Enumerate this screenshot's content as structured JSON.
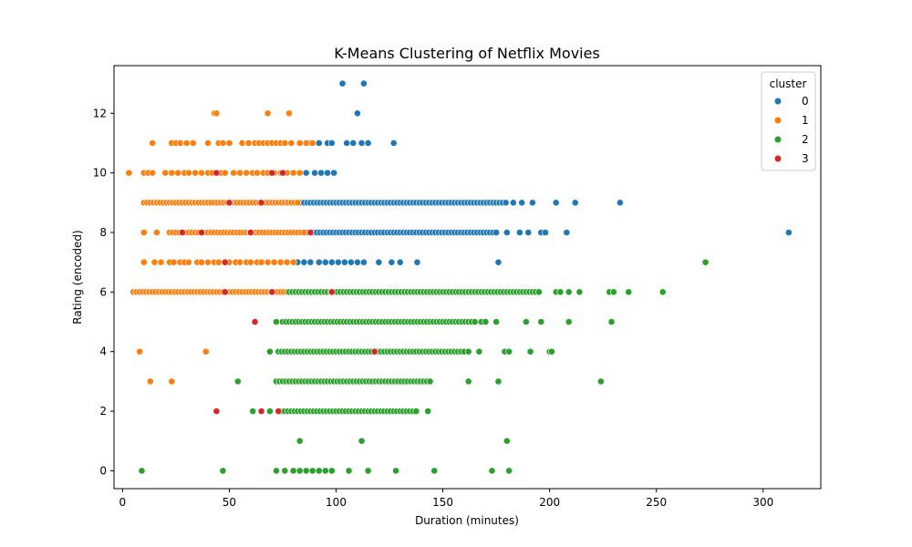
{
  "chart_data": {
    "type": "scatter",
    "title": "K-Means Clustering of Netflix Movies",
    "xlabel": "Duration (minutes)",
    "ylabel": "Rating (encoded)",
    "xlim": [
      -4,
      327
    ],
    "ylim": [
      -0.6,
      13.6
    ],
    "xticks": [
      0,
      50,
      100,
      150,
      200,
      250,
      300
    ],
    "yticks": [
      0,
      2,
      4,
      6,
      8,
      10,
      12
    ],
    "grid": false,
    "legend": {
      "title": "cluster",
      "placement": "top-right"
    },
    "series": [
      {
        "name": "0",
        "color": "#1f77b4",
        "spans": [
          {
            "y": 9,
            "x0": 82,
            "x1": 180
          },
          {
            "y": 8,
            "x0": 85,
            "x1": 175
          }
        ],
        "points": [
          [
            103,
            13
          ],
          [
            113,
            13
          ],
          [
            110,
            12
          ],
          [
            88,
            11
          ],
          [
            92,
            11
          ],
          [
            96,
            11
          ],
          [
            98,
            11
          ],
          [
            105,
            11
          ],
          [
            108,
            11
          ],
          [
            112,
            11
          ],
          [
            115,
            11
          ],
          [
            127,
            11
          ],
          [
            86,
            10
          ],
          [
            90,
            10
          ],
          [
            93,
            10
          ],
          [
            96,
            10
          ],
          [
            99,
            10
          ],
          [
            183,
            9
          ],
          [
            187,
            9
          ],
          [
            192,
            9
          ],
          [
            203,
            9
          ],
          [
            212,
            9
          ],
          [
            233,
            9
          ],
          [
            180,
            8
          ],
          [
            186,
            8
          ],
          [
            190,
            8
          ],
          [
            196,
            8
          ],
          [
            198,
            8
          ],
          [
            208,
            8
          ],
          [
            312,
            8
          ],
          [
            82,
            7
          ],
          [
            85,
            7
          ],
          [
            88,
            7
          ],
          [
            92,
            7
          ],
          [
            95,
            7
          ],
          [
            98,
            7
          ],
          [
            101,
            7
          ],
          [
            104,
            7
          ],
          [
            107,
            7
          ],
          [
            110,
            7
          ],
          [
            113,
            7
          ],
          [
            120,
            7
          ],
          [
            126,
            7
          ],
          [
            130,
            7
          ],
          [
            138,
            7
          ],
          [
            176,
            7
          ]
        ]
      },
      {
        "name": "1",
        "color": "#ff7f0e",
        "spans": [
          {
            "y": 9,
            "x0": 10,
            "x1": 82
          },
          {
            "y": 8,
            "x0": 22,
            "x1": 85
          },
          {
            "y": 6,
            "x0": 5,
            "x1": 78
          }
        ],
        "points": [
          [
            43,
            12
          ],
          [
            44,
            12
          ],
          [
            68,
            12
          ],
          [
            78,
            12
          ],
          [
            14,
            11
          ],
          [
            23,
            11
          ],
          [
            25,
            11
          ],
          [
            27,
            11
          ],
          [
            30,
            11
          ],
          [
            33,
            11
          ],
          [
            40,
            11
          ],
          [
            45,
            11
          ],
          [
            47,
            11
          ],
          [
            50,
            11
          ],
          [
            56,
            11
          ],
          [
            59,
            11
          ],
          [
            62,
            11
          ],
          [
            64,
            11
          ],
          [
            66,
            11
          ],
          [
            68,
            11
          ],
          [
            70,
            11
          ],
          [
            72,
            11
          ],
          [
            74,
            11
          ],
          [
            76,
            11
          ],
          [
            79,
            11
          ],
          [
            83,
            11
          ],
          [
            86,
            11
          ],
          [
            89,
            11
          ],
          [
            3,
            10
          ],
          [
            10,
            10
          ],
          [
            12,
            10
          ],
          [
            14,
            10
          ],
          [
            20,
            10
          ],
          [
            23,
            10
          ],
          [
            26,
            10
          ],
          [
            29,
            10
          ],
          [
            31,
            10
          ],
          [
            34,
            10
          ],
          [
            37,
            10
          ],
          [
            40,
            10
          ],
          [
            42,
            10
          ],
          [
            46,
            10
          ],
          [
            48,
            10
          ],
          [
            52,
            10
          ],
          [
            55,
            10
          ],
          [
            58,
            10
          ],
          [
            61,
            10
          ],
          [
            63,
            10
          ],
          [
            66,
            10
          ],
          [
            68,
            10
          ],
          [
            71,
            10
          ],
          [
            74,
            10
          ],
          [
            77,
            10
          ],
          [
            80,
            10
          ],
          [
            83,
            10
          ],
          [
            10,
            8
          ],
          [
            16,
            8
          ],
          [
            10,
            7
          ],
          [
            15,
            7
          ],
          [
            18,
            7
          ],
          [
            22,
            7
          ],
          [
            24,
            7
          ],
          [
            27,
            7
          ],
          [
            29,
            7
          ],
          [
            31,
            7
          ],
          [
            35,
            7
          ],
          [
            37,
            7
          ],
          [
            40,
            7
          ],
          [
            43,
            7
          ],
          [
            45,
            7
          ],
          [
            48,
            7
          ],
          [
            50,
            7
          ],
          [
            53,
            7
          ],
          [
            55,
            7
          ],
          [
            58,
            7
          ],
          [
            60,
            7
          ],
          [
            63,
            7
          ],
          [
            65,
            7
          ],
          [
            68,
            7
          ],
          [
            71,
            7
          ],
          [
            74,
            7
          ],
          [
            77,
            7
          ],
          [
            80,
            7
          ],
          [
            8,
            4
          ],
          [
            39,
            4
          ],
          [
            13,
            3
          ],
          [
            23,
            3
          ]
        ]
      },
      {
        "name": "2",
        "color": "#2ca02c",
        "spans": [
          {
            "y": 6,
            "x0": 78,
            "x1": 195
          },
          {
            "y": 5,
            "x0": 75,
            "x1": 165
          },
          {
            "y": 4,
            "x0": 73,
            "x1": 160
          },
          {
            "y": 3,
            "x0": 72,
            "x1": 145
          },
          {
            "y": 2,
            "x0": 73,
            "x1": 138
          }
        ],
        "points": [
          [
            203,
            6
          ],
          [
            205,
            6
          ],
          [
            209,
            6
          ],
          [
            214,
            6
          ],
          [
            228,
            6
          ],
          [
            230,
            6
          ],
          [
            237,
            6
          ],
          [
            253,
            6
          ],
          [
            273,
            7
          ],
          [
            72,
            5
          ],
          [
            168,
            5
          ],
          [
            170,
            5
          ],
          [
            175,
            5
          ],
          [
            189,
            5
          ],
          [
            196,
            5
          ],
          [
            209,
            5
          ],
          [
            229,
            5
          ],
          [
            69,
            4
          ],
          [
            162,
            4
          ],
          [
            167,
            4
          ],
          [
            179,
            4
          ],
          [
            181,
            4
          ],
          [
            191,
            4
          ],
          [
            200,
            4
          ],
          [
            201,
            4
          ],
          [
            54,
            3
          ],
          [
            162,
            3
          ],
          [
            176,
            3
          ],
          [
            224,
            3
          ],
          [
            61,
            2
          ],
          [
            69,
            2
          ],
          [
            143,
            2
          ],
          [
            83,
            1
          ],
          [
            112,
            1
          ],
          [
            180,
            1
          ],
          [
            9,
            0
          ],
          [
            47,
            0
          ],
          [
            72,
            0
          ],
          [
            76,
            0
          ],
          [
            80,
            0
          ],
          [
            83,
            0
          ],
          [
            86,
            0
          ],
          [
            89,
            0
          ],
          [
            92,
            0
          ],
          [
            95,
            0
          ],
          [
            98,
            0
          ],
          [
            106,
            0
          ],
          [
            115,
            0
          ],
          [
            128,
            0
          ],
          [
            146,
            0
          ],
          [
            173,
            0
          ],
          [
            181,
            0
          ]
        ]
      },
      {
        "name": "3",
        "color": "#d62728",
        "points": [
          [
            44,
            10
          ],
          [
            70,
            10
          ],
          [
            75,
            10
          ],
          [
            50,
            9
          ],
          [
            65,
            9
          ],
          [
            28,
            8
          ],
          [
            37,
            8
          ],
          [
            60,
            8
          ],
          [
            88,
            8
          ],
          [
            48,
            7
          ],
          [
            48,
            6
          ],
          [
            70,
            6
          ],
          [
            98,
            6
          ],
          [
            62,
            5
          ],
          [
            118,
            4
          ],
          [
            44,
            2
          ],
          [
            73,
            2
          ],
          [
            65,
            2
          ]
        ]
      }
    ]
  }
}
